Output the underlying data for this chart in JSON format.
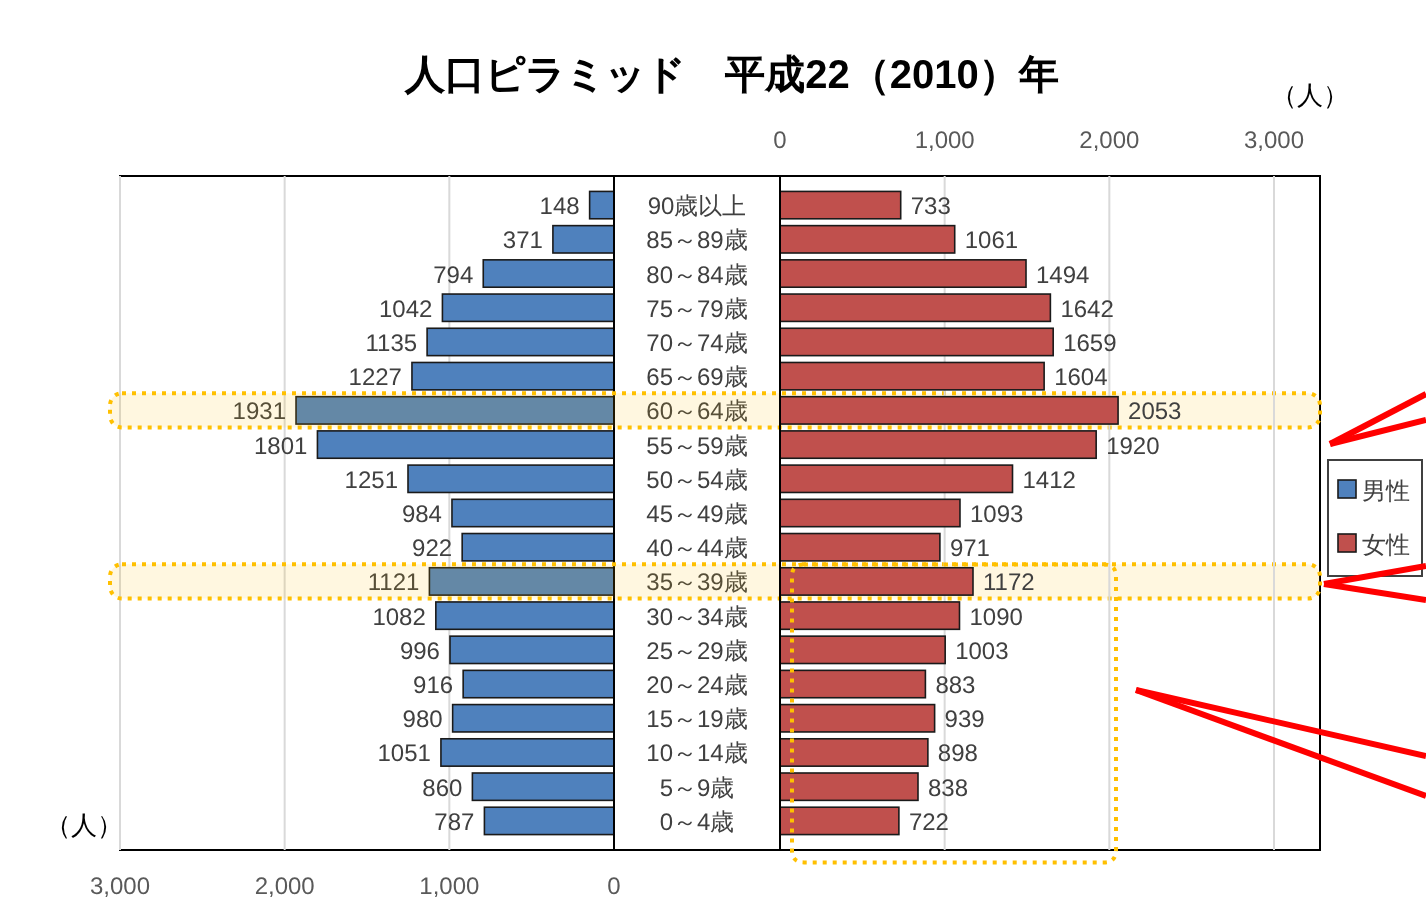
{
  "chart_data": [
    {
      "type": "bar",
      "orientation": "horizontal",
      "title": "人口ピラミッド　平成22（2010）年",
      "categories": [
        "90歳以上",
        "85～89歳",
        "80～84歳",
        "75～79歳",
        "70～74歳",
        "65～69歳",
        "60～64歳",
        "55～59歳",
        "50～54歳",
        "45～49歳",
        "40～44歳",
        "35～39歳",
        "30～34歳",
        "25～29歳",
        "20～24歳",
        "15～19歳",
        "10～14歳",
        "5～9歳",
        "0～4歳"
      ],
      "series": [
        {
          "name": "男性",
          "color": "#4f81bd",
          "values": [
            148,
            371,
            794,
            1042,
            1135,
            1227,
            1931,
            1801,
            1251,
            984,
            922,
            1121,
            1082,
            996,
            916,
            980,
            1051,
            860,
            787
          ]
        }
      ],
      "xlim": [
        3000,
        0
      ],
      "xticks": [
        {
          "value": 3000,
          "label": "3,000"
        },
        {
          "value": 2000,
          "label": "2,000"
        },
        {
          "value": 1000,
          "label": "1,000"
        },
        0
      ],
      "xlabel": "（人）",
      "grid": "x",
      "data_labels": true,
      "legend": "right",
      "bands": [
        {
          "axis": "y",
          "from": "60～64歳",
          "to": "60～64歳",
          "color": "#ffc000"
        },
        {
          "axis": "y",
          "from": "35～39歳",
          "to": "35～39歳",
          "color": "#ffc000"
        }
      ]
    },
    {
      "type": "bar",
      "orientation": "horizontal",
      "categories": [
        null,
        null,
        null,
        null,
        null,
        null,
        null,
        null,
        null,
        null,
        null,
        null,
        null,
        null,
        null,
        null,
        null,
        null,
        null
      ],
      "series": [
        {
          "name": "女性",
          "color": "#c0504d",
          "values": [
            733,
            1061,
            1494,
            1642,
            1659,
            1604,
            2053,
            1920,
            1412,
            1093,
            971,
            1172,
            1090,
            1003,
            883,
            939,
            898,
            838,
            722
          ]
        }
      ],
      "x2lim": [
        0,
        3000
      ],
      "x2ticks": [
        0,
        {
          "value": 1000,
          "label": "1,000"
        },
        {
          "value": 2000,
          "label": "2,000"
        },
        {
          "value": 3000,
          "label": "3,000"
        }
      ],
      "x2label": "（人）",
      "grid": "x",
      "data_labels": true,
      "legend": "right",
      "tick_labels": "x"
    }
  ]
}
